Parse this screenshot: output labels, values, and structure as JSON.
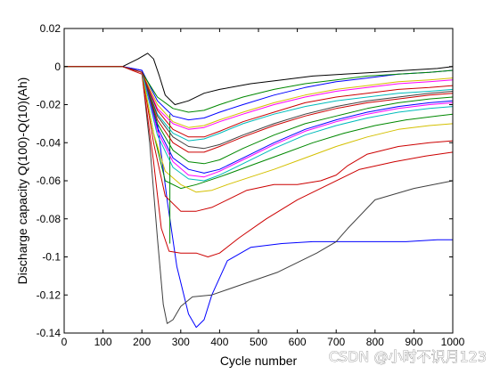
{
  "chart_data": {
    "type": "line",
    "title": "",
    "xlabel": "Cycle number",
    "ylabel": "Discharge capacity Q(100)-Q(10)(Ah)",
    "xlim": [
      0,
      1000
    ],
    "ylim": [
      -0.14,
      0.02
    ],
    "xticks": [
      "0",
      "100",
      "200",
      "300",
      "400",
      "500",
      "600",
      "700",
      "800",
      "900",
      "1000"
    ],
    "yticks": [
      "0.02",
      "0",
      "-0.02",
      "-0.04",
      "-0.06",
      "-0.08",
      "-0.1",
      "-0.12",
      "-0.14"
    ],
    "grid": false,
    "legend": "none",
    "series": [
      {
        "color": "#0000ff",
        "x": [
          0,
          150,
          200,
          240,
          265,
          290,
          320,
          340,
          360,
          380,
          420,
          480,
          560,
          640,
          720,
          800,
          880,
          960,
          1000
        ],
        "y": [
          0,
          0,
          -0.002,
          -0.03,
          -0.07,
          -0.105,
          -0.13,
          -0.137,
          -0.133,
          -0.12,
          -0.102,
          -0.095,
          -0.093,
          -0.092,
          -0.092,
          -0.092,
          -0.092,
          -0.091,
          -0.091
        ]
      },
      {
        "color": "#3f3f3f",
        "x": [
          0,
          150,
          200,
          220,
          240,
          255,
          265,
          280,
          300,
          330,
          380,
          450,
          550,
          650,
          700,
          730,
          800,
          900,
          1000
        ],
        "y": [
          0,
          0,
          -0.003,
          -0.04,
          -0.09,
          -0.125,
          -0.135,
          -0.133,
          -0.126,
          -0.121,
          -0.12,
          -0.115,
          -0.108,
          -0.098,
          -0.092,
          -0.085,
          -0.07,
          -0.064,
          -0.06
        ]
      },
      {
        "color": "#cc0000",
        "x": [
          0,
          150,
          200,
          230,
          250,
          270,
          300,
          340,
          370,
          400,
          450,
          520,
          600,
          680,
          760,
          850,
          930,
          1000
        ],
        "y": [
          0,
          0,
          -0.004,
          -0.05,
          -0.085,
          -0.097,
          -0.098,
          -0.098,
          -0.1,
          -0.098,
          -0.09,
          -0.08,
          -0.07,
          -0.062,
          -0.054,
          -0.05,
          -0.047,
          -0.045
        ]
      },
      {
        "color": "#cc0000",
        "x": [
          0,
          150,
          200,
          230,
          260,
          300,
          340,
          380,
          420,
          470,
          540,
          600,
          660,
          700,
          730,
          780,
          860,
          940,
          1000
        ],
        "y": [
          0,
          0,
          -0.003,
          -0.04,
          -0.068,
          -0.076,
          -0.076,
          -0.074,
          -0.07,
          -0.065,
          -0.062,
          -0.062,
          -0.06,
          -0.057,
          -0.052,
          -0.046,
          -0.042,
          -0.04,
          -0.039
        ]
      },
      {
        "color": "#008800",
        "x": [
          0,
          150,
          200,
          230,
          260,
          300,
          340,
          400,
          480,
          560,
          640,
          720,
          800,
          880,
          960,
          1000
        ],
        "y": [
          0,
          0,
          -0.003,
          -0.035,
          -0.06,
          -0.064,
          -0.062,
          -0.058,
          -0.052,
          -0.046,
          -0.04,
          -0.035,
          -0.031,
          -0.028,
          -0.026,
          -0.025
        ]
      },
      {
        "color": "#d4c000",
        "x": [
          0,
          150,
          200,
          230,
          260,
          300,
          340,
          380,
          420,
          480,
          540,
          620,
          700,
          780,
          860,
          940,
          1000
        ],
        "y": [
          0,
          0,
          -0.003,
          -0.035,
          -0.055,
          -0.062,
          -0.066,
          -0.065,
          -0.062,
          -0.058,
          -0.054,
          -0.048,
          -0.042,
          -0.037,
          -0.033,
          -0.031,
          -0.03
        ]
      },
      {
        "color": "#008800",
        "x": [
          272,
          272
        ],
        "y": [
          -0.025,
          -0.093
        ]
      },
      {
        "color": "#000000",
        "x": [
          0,
          150,
          190,
          215,
          230,
          245,
          260,
          285,
          320,
          360,
          400,
          480,
          560,
          640,
          720,
          800,
          880,
          960,
          1000
        ],
        "y": [
          0,
          0,
          0.004,
          0.007,
          0.004,
          -0.005,
          -0.015,
          -0.02,
          -0.018,
          -0.014,
          -0.012,
          -0.009,
          -0.007,
          -0.005,
          -0.004,
          -0.003,
          -0.002,
          -0.001,
          0
        ]
      },
      {
        "color": "#0000ff",
        "x": [
          0,
          150,
          200,
          240,
          280,
          320,
          360,
          400,
          460,
          540,
          620,
          700,
          780,
          860,
          940,
          1000
        ],
        "y": [
          0,
          0,
          -0.002,
          -0.018,
          -0.026,
          -0.028,
          -0.027,
          -0.024,
          -0.02,
          -0.015,
          -0.011,
          -0.008,
          -0.006,
          -0.004,
          -0.003,
          -0.002
        ]
      },
      {
        "color": "#ff00ff",
        "x": [
          0,
          150,
          200,
          240,
          280,
          320,
          360,
          400,
          460,
          540,
          620,
          700,
          780,
          860,
          940,
          1000
        ],
        "y": [
          0,
          0,
          -0.003,
          -0.022,
          -0.03,
          -0.033,
          -0.032,
          -0.029,
          -0.025,
          -0.02,
          -0.016,
          -0.013,
          -0.011,
          -0.009,
          -0.008,
          -0.007
        ]
      },
      {
        "color": "#00bbbb",
        "x": [
          0,
          150,
          200,
          240,
          280,
          320,
          360,
          400,
          460,
          540,
          620,
          700,
          780,
          860,
          940,
          1000
        ],
        "y": [
          0,
          0,
          -0.003,
          -0.025,
          -0.035,
          -0.039,
          -0.038,
          -0.035,
          -0.03,
          -0.025,
          -0.021,
          -0.018,
          -0.016,
          -0.014,
          -0.013,
          -0.012
        ]
      },
      {
        "color": "#cc0000",
        "x": [
          0,
          150,
          200,
          240,
          280,
          320,
          360,
          400,
          460,
          540,
          620,
          700,
          780,
          860,
          940,
          1000
        ],
        "y": [
          0,
          0,
          -0.003,
          -0.028,
          -0.04,
          -0.045,
          -0.045,
          -0.042,
          -0.037,
          -0.031,
          -0.026,
          -0.022,
          -0.019,
          -0.017,
          -0.015,
          -0.014
        ]
      },
      {
        "color": "#008800",
        "x": [
          0,
          150,
          200,
          240,
          280,
          320,
          360,
          400,
          460,
          540,
          620,
          700,
          780,
          860,
          940,
          1000
        ],
        "y": [
          0,
          0,
          -0.003,
          -0.03,
          -0.044,
          -0.05,
          -0.051,
          -0.049,
          -0.043,
          -0.036,
          -0.03,
          -0.026,
          -0.022,
          -0.019,
          -0.017,
          -0.016
        ]
      },
      {
        "color": "#0000ff",
        "x": [
          0,
          150,
          200,
          240,
          280,
          320,
          360,
          400,
          460,
          540,
          620,
          700,
          780,
          860,
          940,
          1000
        ],
        "y": [
          0,
          0,
          -0.003,
          -0.032,
          -0.048,
          -0.054,
          -0.056,
          -0.054,
          -0.048,
          -0.04,
          -0.033,
          -0.028,
          -0.024,
          -0.021,
          -0.019,
          -0.018
        ]
      },
      {
        "color": "#3f3f3f",
        "x": [
          0,
          150,
          200,
          240,
          280,
          320,
          360,
          400,
          460,
          540,
          620,
          700,
          780,
          860,
          940,
          1000
        ],
        "y": [
          0,
          0,
          -0.003,
          -0.026,
          -0.037,
          -0.042,
          -0.043,
          -0.041,
          -0.036,
          -0.03,
          -0.025,
          -0.021,
          -0.018,
          -0.016,
          -0.014,
          -0.013
        ]
      },
      {
        "color": "#ff00ff",
        "x": [
          0,
          150,
          200,
          240,
          280,
          320,
          360,
          400,
          460,
          540,
          620,
          700,
          780,
          860,
          940,
          1000
        ],
        "y": [
          0,
          0,
          -0.003,
          -0.034,
          -0.05,
          -0.057,
          -0.058,
          -0.055,
          -0.049,
          -0.041,
          -0.034,
          -0.029,
          -0.025,
          -0.022,
          -0.02,
          -0.019
        ]
      },
      {
        "color": "#d4c000",
        "x": [
          0,
          150,
          200,
          240,
          280,
          320,
          360,
          400,
          460,
          540,
          620,
          700,
          780,
          860,
          940,
          1000
        ],
        "y": [
          0,
          0,
          -0.003,
          -0.02,
          -0.029,
          -0.032,
          -0.031,
          -0.028,
          -0.024,
          -0.019,
          -0.015,
          -0.012,
          -0.01,
          -0.008,
          -0.007,
          -0.006
        ]
      },
      {
        "color": "#00bbbb",
        "x": [
          0,
          150,
          200,
          240,
          280,
          320,
          360,
          400,
          460,
          540,
          620,
          700,
          780,
          860,
          940,
          1000
        ],
        "y": [
          0,
          0,
          -0.003,
          -0.036,
          -0.053,
          -0.059,
          -0.06,
          -0.057,
          -0.051,
          -0.043,
          -0.036,
          -0.031,
          -0.027,
          -0.024,
          -0.022,
          -0.021
        ]
      },
      {
        "color": "#008800",
        "x": [
          0,
          150,
          200,
          240,
          280,
          320,
          360,
          400,
          460,
          540,
          620,
          700,
          780,
          860,
          940,
          1000
        ],
        "y": [
          0,
          0,
          -0.003,
          -0.016,
          -0.022,
          -0.024,
          -0.023,
          -0.02,
          -0.016,
          -0.012,
          -0.009,
          -0.007,
          -0.005,
          -0.004,
          -0.003,
          -0.002
        ]
      },
      {
        "color": "#cc0000",
        "x": [
          0,
          150,
          200,
          240,
          280,
          320,
          360,
          400,
          460,
          540,
          620,
          700,
          780,
          860,
          940,
          1000
        ],
        "y": [
          0,
          0,
          -0.003,
          -0.023,
          -0.033,
          -0.037,
          -0.037,
          -0.034,
          -0.029,
          -0.024,
          -0.019,
          -0.016,
          -0.014,
          -0.012,
          -0.011,
          -0.01
        ]
      }
    ]
  },
  "watermark": "CSDN @小时不识月123"
}
